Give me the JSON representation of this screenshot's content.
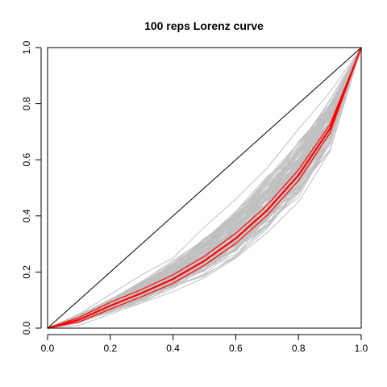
{
  "chart_data": {
    "type": "line",
    "title": "100 reps Lorenz curve",
    "xlabel": "",
    "ylabel": "",
    "xlim": [
      0,
      1
    ],
    "ylim": [
      0,
      1
    ],
    "x_ticks": [
      "0.0",
      "0.2",
      "0.4",
      "0.6",
      "0.8",
      "1.0"
    ],
    "y_ticks": [
      "0.0",
      "0.2",
      "0.4",
      "0.6",
      "0.8",
      "1.0"
    ],
    "grid": false,
    "legend": "none",
    "x": [
      0,
      0.1,
      0.2,
      0.3,
      0.4,
      0.5,
      0.6,
      0.7,
      0.8,
      0.9,
      1.0
    ],
    "equality_line": {
      "x": [
        0,
        1
      ],
      "y": [
        0,
        1
      ],
      "color": "#000000"
    },
    "replicates": {
      "count": 100,
      "color": "#c0c0c0",
      "typical_band": {
        "y_low": [
          0,
          0.02,
          0.06,
          0.1,
          0.15,
          0.2,
          0.27,
          0.36,
          0.48,
          0.65,
          1.0
        ],
        "y_high": [
          0,
          0.045,
          0.1,
          0.16,
          0.23,
          0.31,
          0.4,
          0.52,
          0.65,
          0.8,
          1.0
        ]
      },
      "outer_envelope": {
        "y_low": [
          0,
          0.01,
          0.05,
          0.09,
          0.13,
          0.18,
          0.25,
          0.34,
          0.45,
          0.63,
          1.0
        ],
        "y_high": [
          0,
          0.05,
          0.12,
          0.19,
          0.25,
          0.36,
          0.46,
          0.57,
          0.71,
          0.84,
          1.0
        ]
      }
    },
    "mean_series": {
      "color": "#ff0000",
      "y": [
        0,
        0.03,
        0.08,
        0.125,
        0.175,
        0.24,
        0.32,
        0.42,
        0.545,
        0.71,
        1.0
      ],
      "bound_low": [
        0,
        0.022,
        0.068,
        0.112,
        0.16,
        0.224,
        0.302,
        0.402,
        0.526,
        0.695,
        1.0
      ],
      "bound_high": [
        0,
        0.038,
        0.092,
        0.138,
        0.19,
        0.256,
        0.338,
        0.438,
        0.564,
        0.725,
        1.0
      ]
    }
  }
}
